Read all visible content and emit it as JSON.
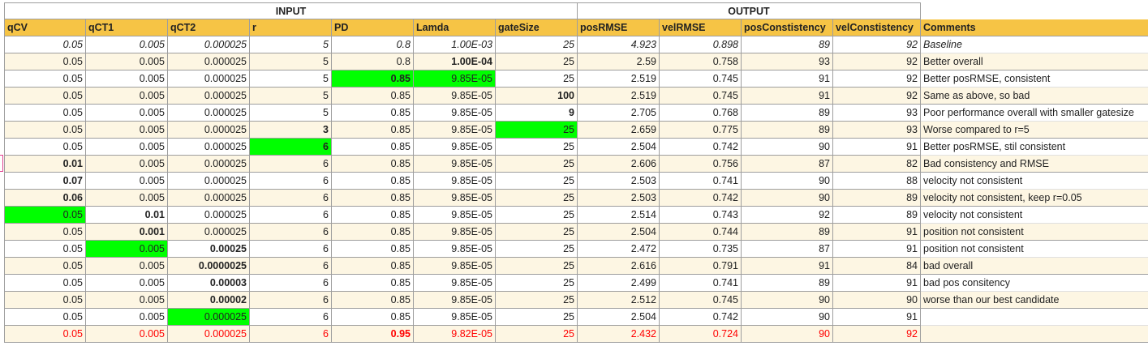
{
  "groups": {
    "input": "INPUT",
    "output": "OUTPUT"
  },
  "headers": [
    "qCV",
    "qCT1",
    "qCT2",
    "r",
    "PD",
    "Lamda",
    "gateSize",
    "posRMSE",
    "velRMSE",
    "posConstistency",
    "velConstistency",
    "Comments"
  ],
  "rows": [
    {
      "cells": [
        "0.05",
        "0.005",
        "0.000025",
        "5",
        "0.8",
        "1.00E-03",
        "25",
        "4.923",
        "0.898",
        "89",
        "92",
        "Baseline"
      ],
      "italic": true
    },
    {
      "cells": [
        "0.05",
        "0.005",
        "0.000025",
        "5",
        "0.8",
        "1.00E-04",
        "25",
        "2.59",
        "0.758",
        "93",
        "92",
        "Better overall"
      ],
      "bold": [
        5
      ]
    },
    {
      "cells": [
        "0.05",
        "0.005",
        "0.000025",
        "5",
        "0.85",
        "9.85E-05",
        "25",
        "2.519",
        "0.745",
        "91",
        "92",
        "Better posRMSE, consistent"
      ],
      "bold": [
        4
      ],
      "green": [
        4,
        5
      ]
    },
    {
      "cells": [
        "0.05",
        "0.005",
        "0.000025",
        "5",
        "0.85",
        "9.85E-05",
        "100",
        "2.519",
        "0.745",
        "91",
        "92",
        "Same as above, so bad"
      ],
      "bold": [
        6
      ]
    },
    {
      "cells": [
        "0.05",
        "0.005",
        "0.000025",
        "5",
        "0.85",
        "9.85E-05",
        "9",
        "2.705",
        "0.768",
        "89",
        "93",
        "Poor performance overall with smaller gatesize"
      ],
      "bold": [
        6
      ]
    },
    {
      "cells": [
        "0.05",
        "0.005",
        "0.000025",
        "3",
        "0.85",
        "9.85E-05",
        "25",
        "2.659",
        "0.775",
        "89",
        "93",
        "Worse compared to r=5"
      ],
      "bold": [
        3
      ],
      "green": [
        6
      ]
    },
    {
      "cells": [
        "0.05",
        "0.005",
        "0.000025",
        "6",
        "0.85",
        "9.85E-05",
        "25",
        "2.504",
        "0.742",
        "90",
        "91",
        "Better posRMSE, stil consistent"
      ],
      "bold": [
        3
      ],
      "green": [
        3
      ]
    },
    {
      "cells": [
        "0.01",
        "0.005",
        "0.000025",
        "6",
        "0.85",
        "9.85E-05",
        "25",
        "2.606",
        "0.756",
        "87",
        "82",
        "Bad consistency and RMSE"
      ],
      "bold": [
        0
      ]
    },
    {
      "cells": [
        "0.07",
        "0.005",
        "0.000025",
        "6",
        "0.85",
        "9.85E-05",
        "25",
        "2.503",
        "0.741",
        "90",
        "88",
        "velocity not consistent"
      ],
      "bold": [
        0
      ]
    },
    {
      "cells": [
        "0.06",
        "0.005",
        "0.000025",
        "6",
        "0.85",
        "9.85E-05",
        "25",
        "2.503",
        "0.742",
        "90",
        "89",
        "velocity not consistent, keep r=0.05"
      ],
      "bold": [
        0
      ]
    },
    {
      "cells": [
        "0.05",
        "0.01",
        "0.000025",
        "6",
        "0.85",
        "9.85E-05",
        "25",
        "2.514",
        "0.743",
        "92",
        "89",
        "velocity not consistent"
      ],
      "bold": [
        1
      ],
      "green": [
        0
      ]
    },
    {
      "cells": [
        "0.05",
        "0.001",
        "0.000025",
        "6",
        "0.85",
        "9.85E-05",
        "25",
        "2.504",
        "0.744",
        "89",
        "91",
        "position not consistent"
      ],
      "bold": [
        1
      ]
    },
    {
      "cells": [
        "0.05",
        "0.005",
        "0.00025",
        "6",
        "0.85",
        "9.85E-05",
        "25",
        "2.472",
        "0.735",
        "87",
        "91",
        "position not consistent"
      ],
      "bold": [
        2
      ],
      "green": [
        1
      ]
    },
    {
      "cells": [
        "0.05",
        "0.005",
        "0.0000025",
        "6",
        "0.85",
        "9.85E-05",
        "25",
        "2.616",
        "0.791",
        "91",
        "84",
        "bad overall"
      ],
      "bold": [
        2
      ]
    },
    {
      "cells": [
        "0.05",
        "0.005",
        "0.00003",
        "6",
        "0.85",
        "9.85E-05",
        "25",
        "2.499",
        "0.741",
        "89",
        "91",
        "bad pos consitency"
      ],
      "bold": [
        2
      ]
    },
    {
      "cells": [
        "0.05",
        "0.005",
        "0.00002",
        "6",
        "0.85",
        "9.85E-05",
        "25",
        "2.512",
        "0.745",
        "90",
        "90",
        "worse than our best candidate"
      ],
      "bold": [
        2
      ]
    },
    {
      "cells": [
        "0.05",
        "0.005",
        "0.000025",
        "6",
        "0.85",
        "9.85E-05",
        "25",
        "2.504",
        "0.742",
        "90",
        "91",
        ""
      ],
      "green": [
        2
      ]
    },
    {
      "cells": [
        "0.05",
        "0.005",
        "0.000025",
        "6",
        "0.95",
        "9.82E-05",
        "25",
        "2.432",
        "0.724",
        "90",
        "92",
        ""
      ],
      "bold": [
        4
      ],
      "red": true
    }
  ],
  "colors": {
    "header_bg": "#f6c445",
    "highlight": "#00ff00",
    "alt_row": "#fdf6e3",
    "red_text": "#ff0000"
  }
}
